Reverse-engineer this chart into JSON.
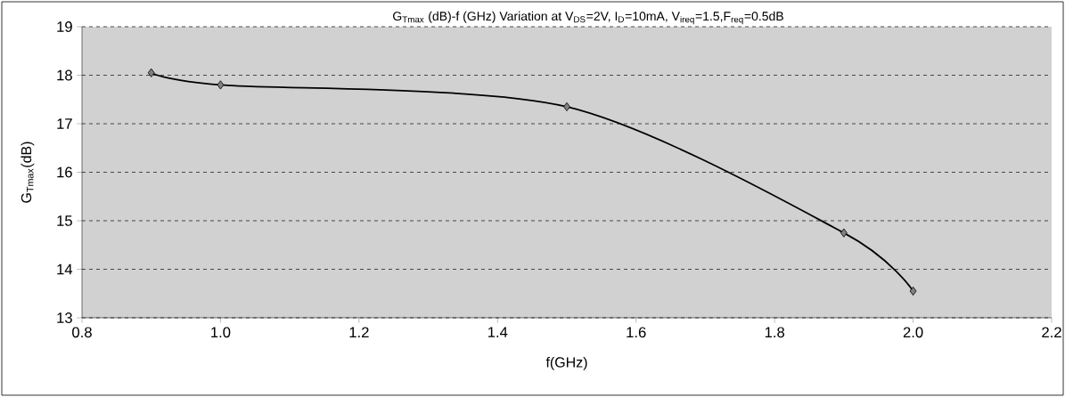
{
  "chart_data": {
    "type": "line",
    "title": "G$_{Tmax}$ (dB)-f (GHz)  Variation at V$_{DS}$=2V, I$_{D}$=10mA, V$_{ireq}$=1.5,F$_{req}$=0.5dB",
    "xlabel": "f(GHz)",
    "ylabel": "G$_{Tmax}$(dB)",
    "x": [
      0.9,
      1.0,
      1.5,
      1.9,
      2.0
    ],
    "series": [
      {
        "color": "#000000",
        "values": [
          18.05,
          17.8,
          17.35,
          14.75,
          13.55
        ]
      }
    ],
    "xlim": [
      0.8,
      2.2
    ],
    "xticks": [
      0.8,
      {
        "value": 1.0,
        "label": "1.0"
      },
      1.2,
      1.4,
      1.6,
      1.8,
      {
        "value": 2.0,
        "label": "2.0"
      },
      2.2
    ],
    "ylim": [
      13,
      19
    ],
    "yticks": [
      13,
      14,
      15,
      16,
      17,
      18,
      19
    ],
    "grid": "y",
    "marker": "diamond",
    "line_style": "solid"
  }
}
